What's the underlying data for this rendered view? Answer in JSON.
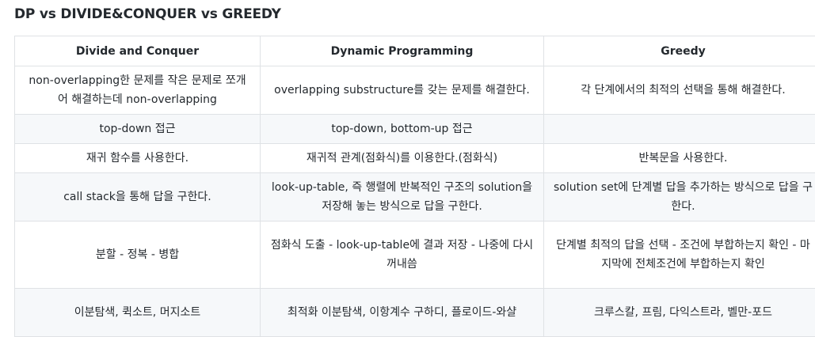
{
  "title": "DP vs DIVIDE&CONQUER vs GREEDY",
  "table": {
    "headers": [
      "Divide and Conquer",
      "Dynamic Programming",
      "Greedy"
    ],
    "rows": [
      [
        "non-overlapping한 문제를 작은 문제로 쪼개어 해결하는데 non-overlapping",
        "overlapping substructure를 갖는 문제를 해결한다.",
        "각 단계에서의 최적의 선택을 통해 해결한다."
      ],
      [
        "top-down 접근",
        "top-down, bottom-up 접근",
        ""
      ],
      [
        "재귀 함수를 사용한다.",
        "재귀적 관계(점화식)를 이용한다.(점화식)",
        "반복문을 사용한다."
      ],
      [
        "call stack을 통해 답을 구한다.",
        "look-up-table, 즉 행렬에 반복적인 구조의 solution을 저장해 놓는 방식으로 답을 구한다.",
        "solution set에 단계별 답을 추가하는 방식으로 답을 구한다."
      ],
      [
        "분할 - 정복 - 병합",
        "점화식 도출 - look-up-table에 결과 저장 - 나중에 다시 꺼내씀",
        "단계별 최적의 답을 선택 - 조건에 부합하는지 확인 - 마지막에 전체조건에 부합하는지 확인"
      ],
      [
        "이분탐색, 퀵소트, 머지소트",
        "최적화 이분탐색, 이항계수 구하디, 플로이드-와샬",
        "크루스칼, 프림, 다익스트라, 벨만-포드"
      ]
    ]
  }
}
